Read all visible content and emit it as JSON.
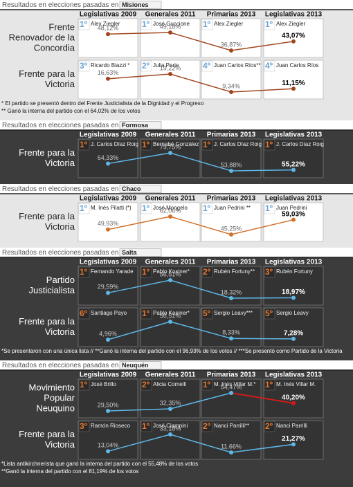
{
  "sections": [
    {
      "title_prefix": "Resultados en elecciones pasadas en",
      "province": "Misiones",
      "theme": "light",
      "line_color": "#a0461e",
      "columns": [
        "Legislativas 2009",
        "Generales 2011",
        "Primarias 2013",
        "Legislativas 2013"
      ],
      "rows": [
        {
          "party_lines": [
            "Frente",
            "Renovador de la",
            "Concordia"
          ],
          "cells": [
            {
              "rank": "1º",
              "candidate": "Alex Ziegler"
            },
            {
              "rank": "1º",
              "candidate": "José Guccione"
            },
            {
              "rank": "1º",
              "candidate": "Alex Ziegler"
            },
            {
              "rank": "1º",
              "candidate": "Alex Ziegler"
            }
          ],
          "values": [
            48.12,
            49.18,
            36.87,
            43.07
          ],
          "value_labels": [
            "48,12%",
            "49,18%",
            "36,87%",
            "43,07%"
          ]
        },
        {
          "party_lines": [
            "Frente para la",
            "Victoria"
          ],
          "cells": [
            {
              "rank": "3º",
              "candidate": "Ricardo Biazzi *"
            },
            {
              "rank": "2º",
              "candidate": "Julia Perie"
            },
            {
              "rank": "4º",
              "candidate": "Juan Carlos Ríos**"
            },
            {
              "rank": "4º",
              "candidate": "Juan Carlos Ríos"
            }
          ],
          "values": [
            16.63,
            19.22,
            9.34,
            11.15
          ],
          "value_labels": [
            "16,63%",
            "19,22%",
            "9,34%",
            "11,15%"
          ]
        }
      ],
      "footnotes": [
        "* El partido se presentó dentro del Frente Justicialista de la Dignidad y el Progreso",
        "** Ganó la interna del partido con el 64,02% de los votos"
      ]
    },
    {
      "title_prefix": "Resultados en elecciones pasadas en",
      "province": "Formosa",
      "theme": "dark",
      "line_color": "#5fb8e8",
      "columns": [
        "Legislativas 2009",
        "Generales 2011",
        "Primarias 2013",
        "Legislativas 2013"
      ],
      "rows": [
        {
          "party_lines": [
            "Frente para la",
            "Victoria"
          ],
          "cells": [
            {
              "rank": "1º",
              "candidate": "J. Carlos Díaz Roig"
            },
            {
              "rank": "1º",
              "candidate": "Bernabé González"
            },
            {
              "rank": "1º",
              "candidate": "J. Carlos Díaz Roig"
            },
            {
              "rank": "1º",
              "candidate": "J. Carlos Díaz Roig"
            }
          ],
          "values": [
            64.33,
            79.75,
            53.88,
            55.22
          ],
          "value_labels": [
            "64,33%",
            "79,75%",
            "53,88%",
            "55,22%"
          ]
        }
      ],
      "footnotes": []
    },
    {
      "title_prefix": "Resultados en elecciones pasadas en",
      "province": "Chaco",
      "theme": "light",
      "line_color": "#d0702a",
      "columns": [
        "Legislativas 2009",
        "Generales 2011",
        "Primarias 2013",
        "Legislativas 2013"
      ],
      "rows": [
        {
          "party_lines": [
            "Frente para la",
            "Victoria"
          ],
          "cells": [
            {
              "rank": "1º",
              "candidate": "M. Inés Pilatti (*)"
            },
            {
              "rank": "1º",
              "candidate": "José Mongelo"
            },
            {
              "rank": "1º",
              "candidate": "Juan Pedrini **"
            },
            {
              "rank": "1º",
              "candidate": "Juan Pedrini"
            }
          ],
          "values": [
            49.93,
            62.06,
            45.25,
            59.03
          ],
          "value_labels": [
            "49,93%",
            "62,06%",
            "45,25%",
            "59,03%"
          ]
        }
      ],
      "footnotes": []
    },
    {
      "title_prefix": "Resultados en elecciones pasadas en",
      "province": "Salta",
      "theme": "dark",
      "line_color": "#5fb8e8",
      "columns": [
        "Legislativas 2009",
        "Generales 2011",
        "Primarias 2013",
        "Legislativas 2013"
      ],
      "rows": [
        {
          "party_lines": [
            "Partido",
            "Justicialista"
          ],
          "cells": [
            {
              "rank": "1º",
              "candidate": "Fernando Yarade"
            },
            {
              "rank": "1º",
              "candidate": "Pablo Kosiner*"
            },
            {
              "rank": "2º",
              "candidate": "Rubén Fortuny**"
            },
            {
              "rank": "3º",
              "candidate": "Rubén Fortuny"
            }
          ],
          "values": [
            29.59,
            56.51,
            18.32,
            18.97
          ],
          "value_labels": [
            "29,59%",
            "56,51%",
            "18,32%",
            "18,97%"
          ]
        },
        {
          "party_lines": [
            "Frente para la",
            "Victoria"
          ],
          "cells": [
            {
              "rank": "6º",
              "candidate": "Santiago Payo"
            },
            {
              "rank": "1º",
              "candidate": "Pablo Kosiner*"
            },
            {
              "rank": "5º",
              "candidate": "Sergio Leavy***"
            },
            {
              "rank": "5º",
              "candidate": "Sergio Leavy"
            }
          ],
          "values": [
            4.96,
            56.51,
            8.33,
            7.28
          ],
          "value_labels": [
            "4,96%",
            "56,51%",
            "8,33%",
            "7,28%"
          ]
        }
      ],
      "footnotes": [
        "*Se presentaron con una única lista // **Ganó la interna del partido con el 96,93% de los votos // ***Se presentó como Partido de la Victoria"
      ]
    },
    {
      "title_prefix": "Resultados en elecciones pasadas en",
      "province": "Neuquén",
      "theme": "dark",
      "line_color": "#5fb8e8",
      "columns": [
        "Legislativas 2009",
        "Generales 2011",
        "Primarias 2013",
        "Legislativas 2013"
      ],
      "rows": [
        {
          "party_lines": [
            "Movimiento",
            "Popular",
            "Neuquino"
          ],
          "cells": [
            {
              "rank": "1º",
              "candidate": "José Brillo"
            },
            {
              "rank": "2º",
              "candidate": "Alicia Comelli"
            },
            {
              "rank": "1º",
              "candidate": "M. Inés Villar M.*"
            },
            {
              "rank": "1º",
              "candidate": "M. Inés Villar M."
            }
          ],
          "values": [
            29.5,
            32.35,
            54.47,
            40.2
          ],
          "value_labels": [
            "29,50%",
            "32,35%",
            "54,47%",
            "40,20%"
          ],
          "last_segment_color": "#e01414"
        },
        {
          "party_lines": [
            "Frente para la",
            "Victoria"
          ],
          "cells": [
            {
              "rank": "3º",
              "candidate": "Ramón Rioseco"
            },
            {
              "rank": "1º",
              "candidate": "José Ciampini"
            },
            {
              "rank": "2º",
              "candidate": "Nanci Parrilli**"
            },
            {
              "rank": "2º",
              "candidate": "Nanci Parrilli"
            }
          ],
          "values": [
            13.04,
            33.18,
            11.66,
            21.27
          ],
          "value_labels": [
            "13,04%",
            "33,18%",
            "11,66%",
            "21,27%"
          ]
        }
      ],
      "footnotes": [
        "*Lista antikirchnerista que ganó la interna del partido con el 55,48% de los votos",
        "**Ganó la interna del partido con el 81,19% de los votos"
      ]
    }
  ]
}
